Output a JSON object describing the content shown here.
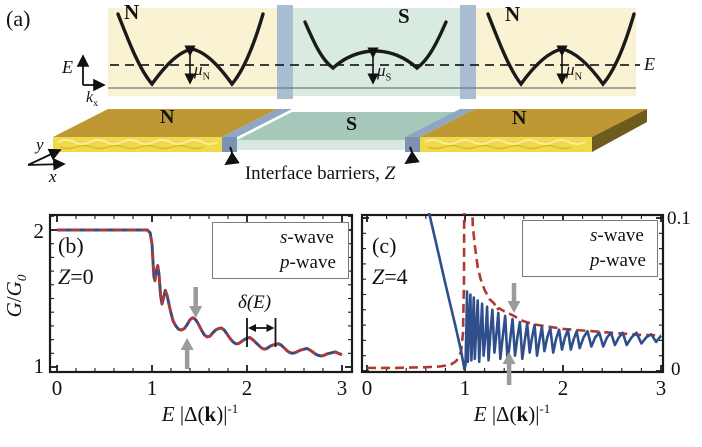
{
  "panel_a": {
    "label": "(a)",
    "band_labels": [
      "N",
      "S",
      "N"
    ],
    "slab_labels": [
      "N",
      "S",
      "N"
    ],
    "mu": [
      {
        "base": "μ",
        "sub": "N"
      },
      {
        "base": "μ",
        "sub": "S"
      },
      {
        "base": "μ",
        "sub": "N"
      }
    ],
    "axis_e": "E",
    "axis_k": {
      "base": "k",
      "sub": "x"
    },
    "dashed_label": "E",
    "slab_axis_y": "y",
    "slab_axis_x": "x",
    "caption": {
      "text": "Interface barriers, ",
      "z": "Z"
    }
  },
  "panel_b": {
    "label": "(b)",
    "z": {
      "var": "Z",
      "rest": "=0"
    },
    "ylabel": {
      "g1": "G",
      "slash": "/",
      "g2": "G",
      "sub": "0"
    },
    "yticks": [
      "2",
      "1"
    ],
    "xticks": [
      "0",
      "1",
      "2",
      "3"
    ],
    "xlabel": {
      "e": "E",
      "mid": " |Δ(",
      "k": "k",
      "close": ")|",
      "sup": "-1"
    },
    "legend": [
      {
        "prefix": "s",
        "rest": "-wave"
      },
      {
        "prefix": "p",
        "rest": "-wave"
      }
    ],
    "delta": {
      "open": "δ(",
      "e": "E",
      "close": ")"
    }
  },
  "panel_c": {
    "label": "(c)",
    "z": {
      "var": "Z",
      "rest": "=4"
    },
    "xticks": [
      "0",
      "1",
      "2",
      "3"
    ],
    "right_yticks": [
      "0.1",
      "0"
    ],
    "xlabel": {
      "e": "E",
      "mid": " |Δ(",
      "k": "k",
      "close": ")|",
      "sup": "-1"
    },
    "legend": [
      {
        "prefix": "s",
        "rest": "-wave"
      },
      {
        "prefix": "p",
        "rest": "-wave"
      }
    ]
  },
  "chart_data": [
    {
      "panel": "b",
      "type": "line",
      "title": "Z=0",
      "xlabel": "E |Delta(k)|^-1",
      "ylabel": "G/G0",
      "xlim": [
        0,
        3
      ],
      "ylim": [
        1,
        2.11
      ],
      "xticks": [
        0,
        1,
        2,
        3
      ],
      "yticks": [
        1,
        2
      ],
      "grid": false,
      "legend_position": "top-right",
      "series_overlap": true,
      "series": [
        {
          "name": "s-wave",
          "color": "#b03a33",
          "dash": true
        },
        {
          "name": "p-wave",
          "color": "#2f4f8c",
          "dash": false
        }
      ],
      "points": [
        [
          0,
          2
        ],
        [
          0.5,
          2
        ],
        [
          0.85,
          2
        ],
        [
          0.95,
          2
        ],
        [
          0.98,
          1.98
        ],
        [
          1.0,
          1.9
        ],
        [
          1.01,
          1.78
        ],
        [
          1.02,
          1.66
        ],
        [
          1.03,
          1.63
        ],
        [
          1.045,
          1.7
        ],
        [
          1.06,
          1.74
        ],
        [
          1.075,
          1.67
        ],
        [
          1.09,
          1.52
        ],
        [
          1.105,
          1.46
        ],
        [
          1.12,
          1.5
        ],
        [
          1.14,
          1.56
        ],
        [
          1.16,
          1.52
        ],
        [
          1.19,
          1.42
        ],
        [
          1.22,
          1.34
        ],
        [
          1.25,
          1.3
        ],
        [
          1.28,
          1.275
        ],
        [
          1.31,
          1.27
        ],
        [
          1.34,
          1.28
        ],
        [
          1.37,
          1.31
        ],
        [
          1.4,
          1.345
        ],
        [
          1.43,
          1.36
        ],
        [
          1.46,
          1.345
        ],
        [
          1.49,
          1.31
        ],
        [
          1.52,
          1.27
        ],
        [
          1.55,
          1.235
        ],
        [
          1.58,
          1.22
        ],
        [
          1.61,
          1.225
        ],
        [
          1.64,
          1.25
        ],
        [
          1.67,
          1.27
        ],
        [
          1.7,
          1.28
        ],
        [
          1.73,
          1.285
        ],
        [
          1.76,
          1.27
        ],
        [
          1.79,
          1.24
        ],
        [
          1.82,
          1.21
        ],
        [
          1.85,
          1.185
        ],
        [
          1.88,
          1.17
        ],
        [
          1.91,
          1.17
        ],
        [
          1.94,
          1.185
        ],
        [
          1.97,
          1.2
        ],
        [
          2.0,
          1.21
        ],
        [
          2.03,
          1.215
        ],
        [
          2.06,
          1.2
        ],
        [
          2.09,
          1.18
        ],
        [
          2.12,
          1.16
        ],
        [
          2.15,
          1.14
        ],
        [
          2.18,
          1.13
        ],
        [
          2.21,
          1.135
        ],
        [
          2.24,
          1.15
        ],
        [
          2.27,
          1.16
        ],
        [
          2.3,
          1.165
        ],
        [
          2.33,
          1.17
        ],
        [
          2.36,
          1.16
        ],
        [
          2.39,
          1.14
        ],
        [
          2.42,
          1.12
        ],
        [
          2.45,
          1.105
        ],
        [
          2.48,
          1.1
        ],
        [
          2.51,
          1.105
        ],
        [
          2.54,
          1.115
        ],
        [
          2.57,
          1.125
        ],
        [
          2.6,
          1.13
        ],
        [
          2.63,
          1.135
        ],
        [
          2.66,
          1.125
        ],
        [
          2.69,
          1.11
        ],
        [
          2.72,
          1.095
        ],
        [
          2.75,
          1.085
        ],
        [
          2.78,
          1.08
        ],
        [
          2.81,
          1.085
        ],
        [
          2.84,
          1.095
        ],
        [
          2.87,
          1.1
        ],
        [
          2.9,
          1.105
        ],
        [
          2.93,
          1.11
        ],
        [
          2.96,
          1.1
        ],
        [
          3.0,
          1.09
        ]
      ],
      "annotations": {
        "up_arrow_x": 1.37,
        "down_arrow_x": 1.46,
        "delta_bars_x": [
          2.0,
          2.3
        ],
        "delta_label": "δ(E)"
      }
    },
    {
      "panel": "c",
      "type": "line",
      "title": "Z=4",
      "xlabel": "E |Delta(k)|^-1",
      "xlim": [
        0,
        3
      ],
      "ylim": [
        0,
        0.105
      ],
      "xticks": [
        0,
        1,
        2,
        3
      ],
      "right_yticks": [
        0,
        0.1
      ],
      "grid": false,
      "legend_position": "top-right",
      "series": [
        {
          "name": "s-wave",
          "color": "#b03a33",
          "dash": true,
          "points": [
            [
              0,
              0.002
            ],
            [
              0.3,
              0.002
            ],
            [
              0.6,
              0.0025
            ],
            [
              0.75,
              0.003
            ],
            [
              0.85,
              0.004
            ],
            [
              0.9,
              0.006
            ],
            [
              0.93,
              0.008
            ],
            [
              0.96,
              0.013
            ],
            [
              0.98,
              0.025
            ],
            [
              0.99,
              0.06
            ],
            [
              1.0,
              0.3
            ],
            [
              1.02,
              0.3
            ],
            [
              1.03,
              0.12
            ],
            [
              1.035,
              0.18
            ],
            [
              1.05,
              0.25
            ],
            [
              1.06,
              0.13
            ],
            [
              1.08,
              0.095
            ],
            [
              1.1,
              0.082
            ],
            [
              1.13,
              0.068
            ],
            [
              1.16,
              0.06
            ],
            [
              1.2,
              0.053
            ],
            [
              1.25,
              0.047
            ],
            [
              1.3,
              0.044
            ],
            [
              1.32,
              0.04
            ],
            [
              1.35,
              0.041
            ],
            [
              1.4,
              0.039
            ],
            [
              1.45,
              0.0375
            ],
            [
              1.5,
              0.036
            ],
            [
              1.55,
              0.034
            ],
            [
              1.6,
              0.0325
            ],
            [
              1.65,
              0.0315
            ],
            [
              1.7,
              0.0305
            ],
            [
              1.8,
              0.0295
            ],
            [
              1.9,
              0.0285
            ],
            [
              2.0,
              0.0275
            ],
            [
              2.1,
              0.027
            ],
            [
              2.2,
              0.0265
            ],
            [
              2.3,
              0.026
            ],
            [
              2.4,
              0.0255
            ],
            [
              2.5,
              0.025
            ],
            [
              2.6,
              0.0245
            ],
            [
              2.7,
              0.024
            ],
            [
              2.8,
              0.0235
            ],
            [
              2.9,
              0.0235
            ],
            [
              3.0,
              0.023
            ]
          ]
        },
        {
          "name": "p-wave",
          "color": "#2f4f8c",
          "dash": false,
          "points": [
            [
              0.62,
              0.107
            ],
            [
              0.7,
              0.085
            ],
            [
              0.8,
              0.057
            ],
            [
              0.9,
              0.03
            ],
            [
              0.96,
              0.013
            ],
            [
              0.995,
              0.001
            ],
            [
              1.005,
              0.004
            ],
            [
              1.015,
              0.032
            ],
            [
              1.02,
              0.052
            ],
            [
              1.03,
              0.006
            ],
            [
              1.045,
              0.035
            ],
            [
              1.055,
              0.05
            ],
            [
              1.065,
              0.007
            ],
            [
              1.08,
              0.03
            ],
            [
              1.09,
              0.048
            ],
            [
              1.1,
              0.008
            ],
            [
              1.115,
              0.028
            ],
            [
              1.13,
              0.046
            ],
            [
              1.145,
              0.006
            ],
            [
              1.16,
              0.026
            ],
            [
              1.175,
              0.044
            ],
            [
              1.19,
              0.01
            ],
            [
              1.21,
              0.024
            ],
            [
              1.225,
              0.042
            ],
            [
              1.24,
              0.007
            ],
            [
              1.26,
              0.026
            ],
            [
              1.28,
              0.04
            ],
            [
              1.3,
              0.012
            ],
            [
              1.32,
              0.024
            ],
            [
              1.34,
              0.038
            ],
            [
              1.36,
              0.008
            ],
            [
              1.385,
              0.022
            ],
            [
              1.41,
              0.036
            ],
            [
              1.435,
              0.006
            ],
            [
              1.46,
              0.02
            ],
            [
              1.485,
              0.034
            ],
            [
              1.51,
              0.01
            ],
            [
              1.535,
              0.022
            ],
            [
              1.56,
              0.032
            ],
            [
              1.585,
              0.008
            ],
            [
              1.61,
              0.02
            ],
            [
              1.635,
              0.031
            ],
            [
              1.66,
              0.012
            ],
            [
              1.685,
              0.022
            ],
            [
              1.71,
              0.03
            ],
            [
              1.735,
              0.01
            ],
            [
              1.76,
              0.02
            ],
            [
              1.785,
              0.029
            ],
            [
              1.81,
              0.013
            ],
            [
              1.84,
              0.022
            ],
            [
              1.87,
              0.028
            ],
            [
              1.9,
              0.012
            ],
            [
              1.93,
              0.021
            ],
            [
              1.96,
              0.027
            ],
            [
              1.99,
              0.014
            ],
            [
              2.02,
              0.022
            ],
            [
              2.05,
              0.027
            ],
            [
              2.08,
              0.014
            ],
            [
              2.11,
              0.021
            ],
            [
              2.14,
              0.026
            ],
            [
              2.17,
              0.015
            ],
            [
              2.21,
              0.022
            ],
            [
              2.25,
              0.026
            ],
            [
              2.29,
              0.016
            ],
            [
              2.33,
              0.022
            ],
            [
              2.37,
              0.025
            ],
            [
              2.41,
              0.016
            ],
            [
              2.45,
              0.022
            ],
            [
              2.49,
              0.025
            ],
            [
              2.53,
              0.017
            ],
            [
              2.57,
              0.022
            ],
            [
              2.61,
              0.025
            ],
            [
              2.65,
              0.017
            ],
            [
              2.7,
              0.022
            ],
            [
              2.75,
              0.025
            ],
            [
              2.8,
              0.018
            ],
            [
              2.85,
              0.022
            ],
            [
              2.9,
              0.024
            ],
            [
              2.95,
              0.019
            ],
            [
              3.0,
              0.023
            ]
          ]
        }
      ],
      "annotations": {
        "down_arrow_x": 1.5,
        "up_arrow_x": 1.45
      }
    }
  ]
}
